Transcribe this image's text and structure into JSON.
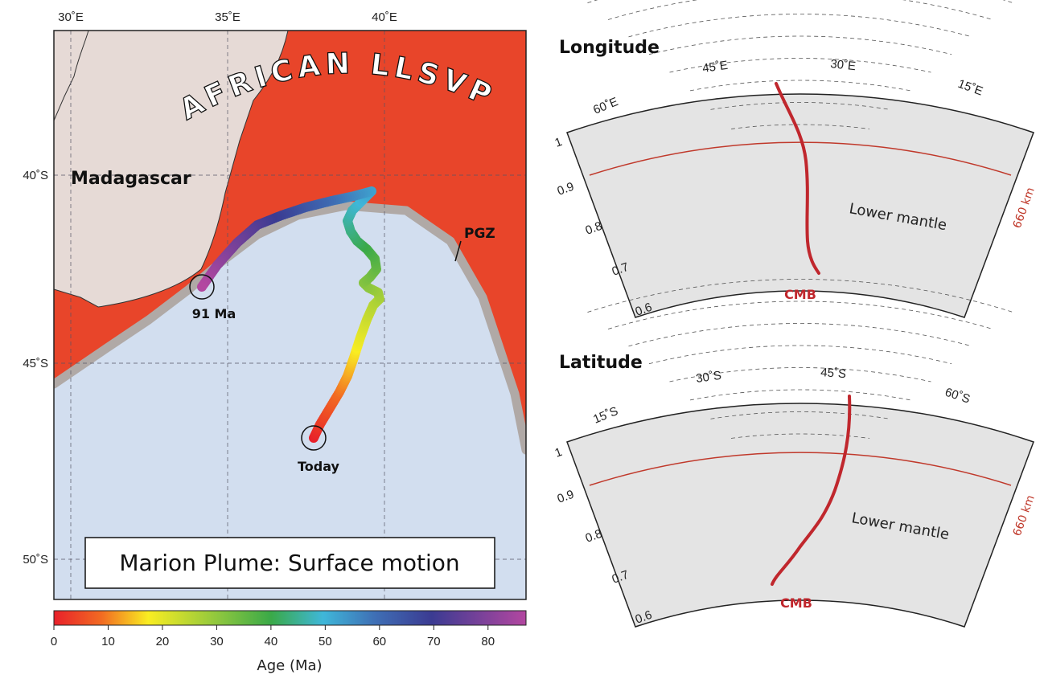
{
  "map": {
    "lon_labels": [
      "30˚E",
      "35˚E",
      "40˚E"
    ],
    "lat_labels": [
      "40˚S",
      "45˚S",
      "50˚S"
    ],
    "continent_label": "Madagascar",
    "llsvp_label": "AFRICAN LLSVP",
    "pgz_label": "PGZ",
    "start_label": "91 Ma",
    "end_label": "Today",
    "title_box": "Marion Plume: Surface motion",
    "colors": {
      "llsvp": "#e8452a",
      "land": "#e6dad6",
      "ocean": "#d2deef",
      "pgz": "#b0a9a6"
    }
  },
  "colorbar": {
    "ticks": [
      "0",
      "10",
      "20",
      "30",
      "40",
      "50",
      "60",
      "70",
      "80"
    ],
    "label": "Age (Ma)",
    "range": [
      0,
      87
    ]
  },
  "longitude_panel": {
    "title": "Longitude",
    "angle_labels": [
      "60˚E",
      "45˚E",
      "30˚E",
      "15˚E"
    ],
    "radius_labels": [
      "1",
      "0.9",
      "0.8",
      "0.7",
      "0.6"
    ],
    "depth_label": "660 km",
    "region_label": "Lower mantle",
    "cmb_label": "CMB"
  },
  "latitude_panel": {
    "title": "Latitude",
    "angle_labels": [
      "15˚S",
      "30˚S",
      "45˚S",
      "60˚S"
    ],
    "radius_labels": [
      "1",
      "0.9",
      "0.8",
      "0.7",
      "0.6"
    ],
    "depth_label": "660 km",
    "region_label": "Lower mantle",
    "cmb_label": "CMB"
  }
}
